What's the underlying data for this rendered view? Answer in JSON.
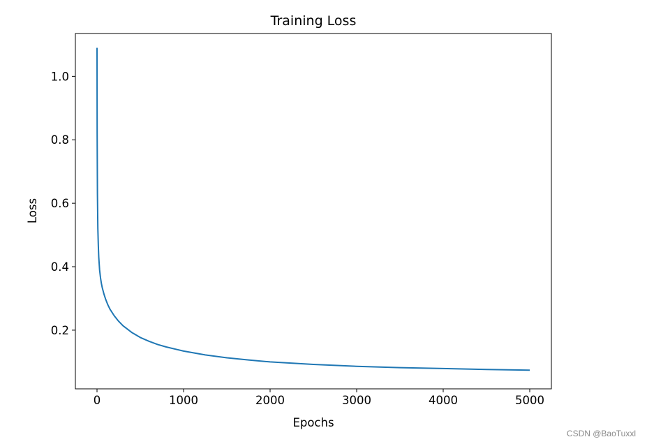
{
  "chart_data": {
    "type": "line",
    "title": "Training Loss",
    "xlabel": "Epochs",
    "ylabel": "Loss",
    "xlim": [
      -250,
      5250
    ],
    "ylim": [
      0.015,
      1.135
    ],
    "xticks": [
      0,
      1000,
      2000,
      3000,
      4000,
      5000
    ],
    "yticks": [
      0.2,
      0.4,
      0.6,
      0.8,
      1.0
    ],
    "xtick_labels": [
      "0",
      "1000",
      "2000",
      "3000",
      "4000",
      "5000"
    ],
    "ytick_labels": [
      "0.2",
      "0.4",
      "0.6",
      "0.8",
      "1.0"
    ],
    "grid": false,
    "line_color": "#1f77b4",
    "series": [
      {
        "x": [
          0,
          2,
          5,
          10,
          15,
          20,
          30,
          40,
          50,
          60,
          80,
          100,
          125,
          150,
          200,
          250,
          300,
          400,
          500,
          600,
          700,
          800,
          1000,
          1250,
          1500,
          1750,
          2000,
          2500,
          3000,
          3500,
          4000,
          4500,
          5000
        ],
        "y": [
          1.09,
          0.82,
          0.63,
          0.52,
          0.465,
          0.43,
          0.39,
          0.365,
          0.348,
          0.335,
          0.314,
          0.297,
          0.28,
          0.266,
          0.245,
          0.228,
          0.214,
          0.193,
          0.177,
          0.165,
          0.155,
          0.147,
          0.134,
          0.122,
          0.113,
          0.106,
          0.1,
          0.092,
          0.086,
          0.082,
          0.079,
          0.076,
          0.074
        ]
      }
    ]
  },
  "watermark": "CSDN @BaoTuxxl"
}
